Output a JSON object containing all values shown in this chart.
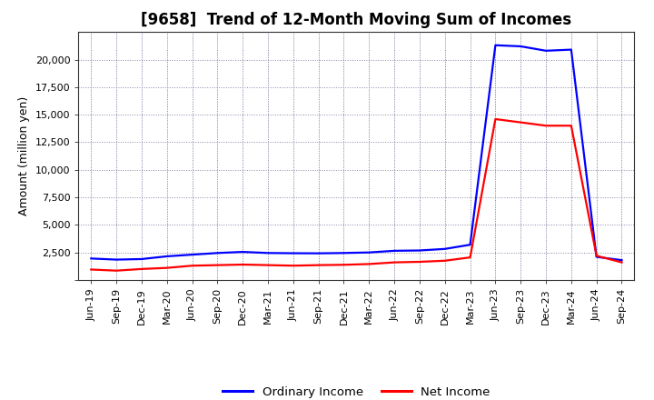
{
  "title": "[9658]  Trend of 12-Month Moving Sum of Incomes",
  "ylabel": "Amount (million yen)",
  "background_color": "#ffffff",
  "plot_background_color": "#ffffff",
  "grid_color": "#8888aa",
  "ordinary_income_color": "#0000ff",
  "net_income_color": "#ff0000",
  "line_width": 1.6,
  "x_labels": [
    "Jun-19",
    "Sep-19",
    "Dec-19",
    "Mar-20",
    "Jun-20",
    "Sep-20",
    "Dec-20",
    "Mar-21",
    "Jun-21",
    "Sep-21",
    "Dec-21",
    "Mar-22",
    "Jun-22",
    "Sep-22",
    "Dec-22",
    "Mar-23",
    "Jun-23",
    "Sep-23",
    "Dec-23",
    "Mar-24",
    "Jun-24",
    "Sep-24"
  ],
  "ordinary_income": [
    1950,
    1850,
    1900,
    2150,
    2300,
    2450,
    2550,
    2450,
    2430,
    2420,
    2450,
    2500,
    2650,
    2680,
    2820,
    3200,
    21300,
    21200,
    20800,
    20900,
    2100,
    1800
  ],
  "net_income": [
    950,
    850,
    1000,
    1100,
    1300,
    1350,
    1400,
    1350,
    1300,
    1350,
    1380,
    1450,
    1600,
    1650,
    1750,
    2050,
    14600,
    14300,
    14000,
    14000,
    2200,
    1600
  ],
  "ylim": [
    0,
    22500
  ],
  "yticks": [
    0,
    2500,
    5000,
    7500,
    10000,
    12500,
    15000,
    17500,
    20000
  ],
  "legend_labels": [
    "Ordinary Income",
    "Net Income"
  ],
  "title_fontsize": 12,
  "axis_label_fontsize": 9,
  "tick_fontsize": 8
}
